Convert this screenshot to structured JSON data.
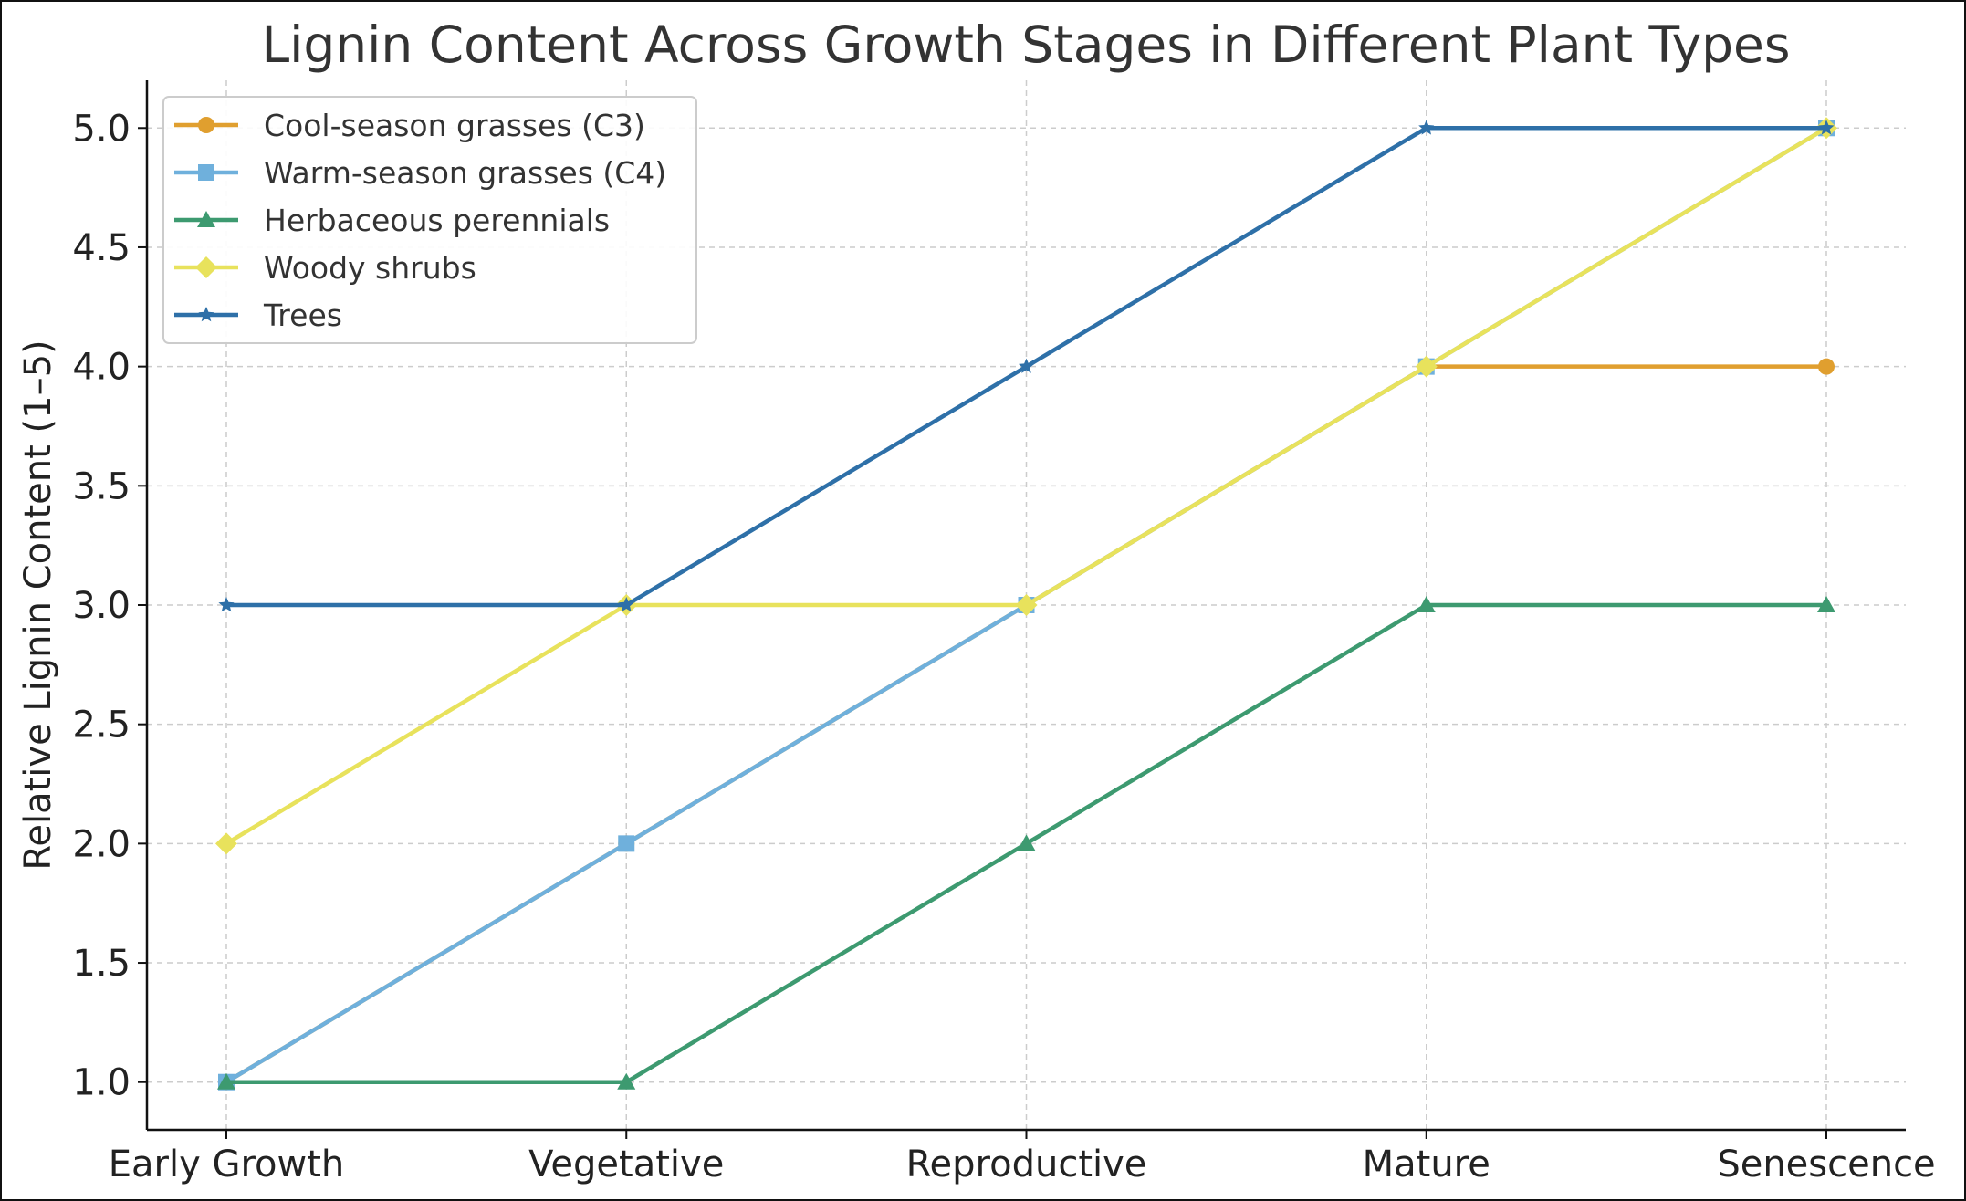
{
  "chart_data": {
    "type": "line",
    "title": "Lignin Content Across Growth Stages in Different Plant Types",
    "xlabel": "",
    "ylabel": "Relative Lignin Content (1–5)",
    "categories": [
      "Early Growth",
      "Vegetative",
      "Reproductive",
      "Mature",
      "Senescence"
    ],
    "ylim": [
      0.8,
      5.2
    ],
    "yticks": [
      "1.0",
      "1.5",
      "2.0",
      "2.5",
      "3.0",
      "3.5",
      "4.0",
      "4.5",
      "5.0"
    ],
    "grid": true,
    "legend_position": "top-left",
    "series": [
      {
        "name": "Cool-season grasses (C3)",
        "values": [
          1,
          2,
          3,
          4,
          4
        ],
        "color": "#E09F2F",
        "marker": "circle"
      },
      {
        "name": "Warm-season grasses (C4)",
        "values": [
          1,
          2,
          3,
          4,
          5
        ],
        "color": "#6FB0DC",
        "marker": "square"
      },
      {
        "name": "Herbaceous perennials",
        "values": [
          1,
          1,
          2,
          3,
          3
        ],
        "color": "#3D9A70",
        "marker": "triangle"
      },
      {
        "name": "Woody shrubs",
        "values": [
          2,
          3,
          3,
          4,
          5
        ],
        "color": "#E8E25C",
        "marker": "diamond"
      },
      {
        "name": "Trees",
        "values": [
          3,
          3,
          4,
          5,
          5
        ],
        "color": "#2E70A8",
        "marker": "star"
      }
    ]
  }
}
